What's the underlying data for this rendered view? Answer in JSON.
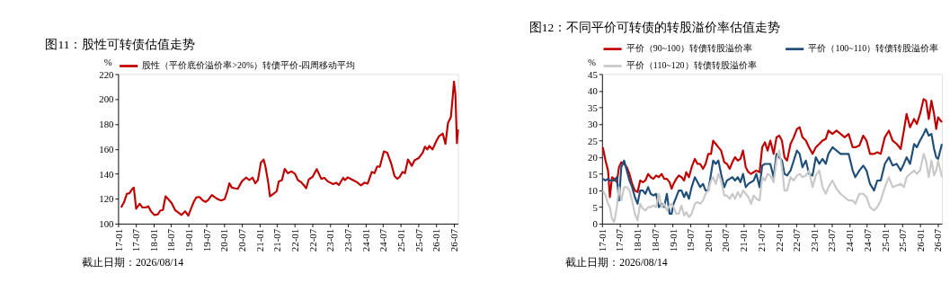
{
  "chart_data": [
    {
      "type": "line",
      "title": "图11：股性可转债估值走势",
      "ylabel": "%",
      "legend": "top",
      "xlim": [
        "2017-01-01",
        "2026-08-14"
      ],
      "ylim": [
        100,
        220
      ],
      "yticks": [
        100,
        120,
        140,
        160,
        180,
        200,
        220
      ],
      "xticks": [
        {
          "value": "2017-01",
          "label": "17-01"
        },
        {
          "value": "2017-07",
          "label": "17-07"
        },
        {
          "value": "2018-01",
          "label": "18-01"
        },
        {
          "value": "2018-07",
          "label": "18-07"
        },
        {
          "value": "2019-01",
          "label": "19-01"
        },
        {
          "value": "2019-07",
          "label": "19-07"
        },
        {
          "value": "2020-01",
          "label": "20-01"
        },
        {
          "value": "2020-07",
          "label": "20-07"
        },
        {
          "value": "2021-01",
          "label": "21-01"
        },
        {
          "value": "2021-07",
          "label": "21-07"
        },
        {
          "value": "2022-01",
          "label": "22-01"
        },
        {
          "value": "2022-07",
          "label": "22-07"
        },
        {
          "value": "2023-01",
          "label": "23-01"
        },
        {
          "value": "2023-07",
          "label": "23-07"
        },
        {
          "value": "2024-01",
          "label": "24-01"
        },
        {
          "value": "2024-07",
          "label": "24-07"
        },
        {
          "value": "2025-01",
          "label": "25-01"
        },
        {
          "value": "2025-07",
          "label": "25-07"
        },
        {
          "value": "2026-01",
          "label": "26-01"
        },
        {
          "value": "2026-07",
          "label": "26-07"
        }
      ],
      "x": [
        "2017-02-01",
        "2017-03-04",
        "2017-04-01",
        "2017-04-28",
        "2017-05-19",
        "2017-06-12",
        "2017-07-06",
        "2017-08-12",
        "2017-09-09",
        "2017-10-12",
        "2017-11-09",
        "2017-12-06",
        "2018-01-09",
        "2018-02-15",
        "2018-03-12",
        "2018-04-09",
        "2018-05-06",
        "2018-06-03",
        "2018-07-09",
        "2018-08-12",
        "2018-09-15",
        "2018-10-18",
        "2018-11-24",
        "2018-12-27",
        "2019-01-24",
        "2019-02-21",
        "2019-03-18",
        "2019-04-21",
        "2019-05-27",
        "2019-06-24",
        "2019-07-21",
        "2019-08-27",
        "2019-10-01",
        "2019-10-28",
        "2019-12-01",
        "2020-01-06",
        "2020-02-03",
        "2020-02-24",
        "2020-03-21",
        "2020-04-15",
        "2020-05-21",
        "2020-07-03",
        "2020-08-15",
        "2020-09-18",
        "2020-10-21",
        "2020-11-18",
        "2020-12-15",
        "2021-01-15",
        "2021-02-12",
        "2021-03-03",
        "2021-04-01",
        "2021-04-19",
        "2021-05-24",
        "2021-06-27",
        "2021-07-19",
        "2021-08-21",
        "2021-09-18",
        "2021-10-21",
        "2021-11-27",
        "2022-01-03",
        "2022-02-01",
        "2022-03-04",
        "2022-04-06",
        "2022-04-28",
        "2022-05-25",
        "2022-07-04",
        "2022-08-15",
        "2022-10-01",
        "2022-11-03",
        "2022-12-06",
        "2023-02-01",
        "2023-03-04",
        "2023-04-01",
        "2023-05-15",
        "2023-06-03",
        "2023-07-01",
        "2023-08-25",
        "2023-10-06",
        "2023-11-15",
        "2023-12-21",
        "2024-01-24",
        "2024-03-06",
        "2024-04-03",
        "2024-05-01",
        "2024-05-28",
        "2024-07-09",
        "2024-08-12",
        "2024-09-24",
        "2024-10-27",
        "2024-11-24",
        "2024-12-21",
        "2025-01-18",
        "2025-02-12",
        "2025-03-15",
        "2025-04-24",
        "2025-05-21",
        "2025-07-03",
        "2025-08-15",
        "2025-09-06",
        "2025-10-01",
        "2025-10-21",
        "2025-11-24",
        "2026-01-01",
        "2026-01-28",
        "2026-03-09",
        "2026-04-06",
        "2026-05-03",
        "2026-06-01",
        "2026-06-22",
        "2026-07-03",
        "2026-07-18",
        "2026-08-03",
        "2026-08-14"
      ],
      "series": [
        {
          "name": "股性（平价底价溢价率>20%）转债平价-四周移动平均",
          "color": "#c00000",
          "values": [
            113,
            117.5,
            124,
            124.5,
            127,
            129,
            112,
            116,
            113,
            113,
            114,
            110,
            107,
            107.5,
            110.5,
            111,
            122,
            119.7,
            116.5,
            111,
            109,
            107,
            110,
            106.5,
            112,
            117.5,
            121,
            121.5,
            118.6,
            117.5,
            119,
            123,
            121,
            119.7,
            118.6,
            119.7,
            126,
            132.4,
            129,
            128.5,
            128,
            134,
            137,
            135,
            137,
            132.4,
            135,
            149,
            151.5,
            146,
            133,
            122,
            124,
            126,
            134,
            135,
            144,
            140.5,
            142,
            140,
            135,
            133.5,
            130.7,
            128.5,
            135.5,
            137.7,
            143.8,
            136,
            136.8,
            134,
            131.8,
            132.9,
            131,
            136.8,
            135,
            137.2,
            135,
            133.3,
            130.7,
            132.9,
            132.2,
            141.6,
            140.5,
            146,
            145.6,
            158,
            157,
            148,
            138.3,
            136,
            137.7,
            141.6,
            140.5,
            151.5,
            146.4,
            150.8,
            152.6,
            157,
            161.8,
            159.6,
            162.4,
            159.6,
            166.2,
            170,
            172.3,
            164,
            181,
            185.4,
            203,
            214,
            204,
            164.6,
            175.6
          ]
        }
      ],
      "annotations": [
        "截止日期：2026/08/14"
      ]
    },
    {
      "type": "line",
      "title": "图12：不同平价可转债的转股溢价率估值走势",
      "ylabel": "%",
      "legend": "top",
      "xlim": [
        "2017-01-01",
        "2026-08-14"
      ],
      "ylim": [
        0,
        45
      ],
      "yticks": [
        0,
        5,
        10,
        15,
        20,
        25,
        30,
        35,
        40,
        45
      ],
      "xticks": [
        {
          "value": "2017-01",
          "label": "17-01"
        },
        {
          "value": "2017-07",
          "label": "17-07"
        },
        {
          "value": "2018-01",
          "label": "18-01"
        },
        {
          "value": "2018-07",
          "label": "18-07"
        },
        {
          "value": "2019-01",
          "label": "19-01"
        },
        {
          "value": "2019-07",
          "label": "19-07"
        },
        {
          "value": "2020-01",
          "label": "20-01"
        },
        {
          "value": "2020-07",
          "label": "20-07"
        },
        {
          "value": "2021-01",
          "label": "21-01"
        },
        {
          "value": "2021-07",
          "label": "21-07"
        },
        {
          "value": "2022-01",
          "label": "22-01"
        },
        {
          "value": "2022-07",
          "label": "22-07"
        },
        {
          "value": "2023-01",
          "label": "23-01"
        },
        {
          "value": "2023-07",
          "label": "23-07"
        },
        {
          "value": "2024-01",
          "label": "24-01"
        },
        {
          "value": "2024-07",
          "label": "24-07"
        },
        {
          "value": "2025-01",
          "label": "25-01"
        },
        {
          "value": "2025-07",
          "label": "25-07"
        },
        {
          "value": "2026-01",
          "label": "26-01"
        },
        {
          "value": "2026-07",
          "label": "26-07"
        }
      ],
      "x": [
        "2017-01-09",
        "2017-02-06",
        "2017-03-04",
        "2017-03-23",
        "2017-04-14",
        "2017-05-06",
        "2017-06-03",
        "2017-06-25",
        "2017-07-19",
        "2017-08-17",
        "2017-09-14",
        "2017-10-11",
        "2017-11-08",
        "2017-12-06",
        "2018-01-03",
        "2018-01-30",
        "2018-02-27",
        "2018-03-25",
        "2018-04-22",
        "2018-05-19",
        "2018-06-16",
        "2018-07-14",
        "2018-08-11",
        "2018-09-08",
        "2018-10-05",
        "2018-11-02",
        "2018-11-30",
        "2018-12-21",
        "2019-01-10",
        "2019-02-07",
        "2019-03-05",
        "2019-04-02",
        "2019-04-29",
        "2019-05-21",
        "2019-06-18",
        "2019-07-16",
        "2019-08-18",
        "2019-09-15",
        "2019-10-12",
        "2019-11-10",
        "2019-12-07",
        "2020-01-04",
        "2020-02-01",
        "2020-02-23",
        "2020-03-21",
        "2020-04-17",
        "2020-05-15",
        "2020-06-17",
        "2020-07-15",
        "2020-08-12",
        "2020-09-09",
        "2020-10-06",
        "2020-11-04",
        "2020-12-01",
        "2020-12-28",
        "2021-01-25",
        "2021-02-22",
        "2021-03-20",
        "2021-04-17",
        "2021-05-14",
        "2021-06-17",
        "2021-07-14",
        "2021-08-11",
        "2021-09-08",
        "2021-10-06",
        "2021-11-09",
        "2021-12-09",
        "2022-01-06",
        "2022-02-03",
        "2022-03-01",
        "2022-03-28",
        "2022-05-03",
        "2022-06-05",
        "2022-07-08",
        "2022-08-05",
        "2022-09-03",
        "2022-10-08",
        "2022-11-10",
        "2022-12-16",
        "2023-01-19",
        "2023-02-24",
        "2023-03-29",
        "2023-05-02",
        "2023-05-29",
        "2023-07-10",
        "2023-08-21",
        "2023-10-02",
        "2023-11-13",
        "2023-12-24",
        "2024-02-04",
        "2024-03-02",
        "2024-04-13",
        "2024-05-23",
        "2024-06-26",
        "2024-08-01",
        "2024-09-12",
        "2024-10-15",
        "2024-11-20",
        "2025-01-01",
        "2025-02-12",
        "2025-03-23",
        "2025-05-04",
        "2025-06-14",
        "2025-07-17",
        "2025-08-14",
        "2025-09-19",
        "2025-10-31",
        "2025-11-28",
        "2025-12-31",
        "2026-02-06",
        "2026-03-03",
        "2026-03-31",
        "2026-04-28",
        "2026-05-25",
        "2026-06-16",
        "2026-07-06",
        "2026-08-14"
      ],
      "series": [
        {
          "name": "平价（90~100）转债转股溢价率",
          "color": "#c00000",
          "values": [
            23,
            19,
            16,
            8,
            14,
            13.5,
            12.5,
            17,
            18.5,
            18,
            17,
            15,
            12,
            10,
            9.5,
            13,
            12.5,
            13,
            15,
            14,
            13.5,
            14.5,
            14,
            15,
            13.5,
            13.5,
            12.5,
            10.5,
            12,
            13.5,
            14.5,
            14,
            13,
            15.5,
            14,
            17,
            19.5,
            18,
            18,
            16.5,
            18,
            21,
            21,
            25,
            24,
            23,
            22,
            18.5,
            18,
            16.5,
            18.5,
            20,
            19,
            19.5,
            22,
            17,
            15.5,
            15,
            15.5,
            16,
            15.5,
            23,
            24.5,
            22,
            25,
            21,
            26,
            26.5,
            25,
            20,
            19,
            24,
            26,
            28.5,
            29,
            26,
            25,
            23,
            21,
            23,
            24,
            25,
            25.5,
            28,
            27,
            28,
            27,
            26,
            27,
            23,
            23,
            23.5,
            26.5,
            25,
            21,
            21,
            21.5,
            21,
            26,
            28,
            25,
            24,
            22.5,
            28,
            33,
            29,
            31.5,
            30,
            33,
            37.5,
            37,
            31.5,
            37,
            33,
            28.5,
            32,
            30.5
          ]
        },
        {
          "name": "平价（100~110）转债转股溢价率",
          "color": "#1f4e79",
          "values": [
            13.5,
            13,
            13.5,
            13,
            13,
            13,
            14,
            7,
            17,
            19,
            16,
            13,
            11,
            8,
            6,
            10,
            10,
            9,
            11,
            9,
            8.5,
            9,
            5,
            6,
            5,
            9,
            3,
            3,
            6,
            8,
            10,
            10,
            8,
            9.5,
            7.5,
            11,
            14,
            12.5,
            11,
            12,
            10,
            10,
            15,
            19,
            18,
            19,
            15,
            11,
            13,
            13.5,
            14,
            13,
            14,
            12.5,
            15,
            11,
            12,
            12.5,
            13,
            15,
            11,
            17.5,
            18,
            18,
            18,
            14,
            21,
            20,
            19,
            15,
            14.5,
            16,
            19,
            22,
            21,
            17,
            19,
            15,
            14.5,
            20,
            18,
            19.5,
            18,
            21,
            23,
            22,
            21,
            21,
            21,
            16,
            14,
            16,
            17.5,
            16,
            12,
            10,
            13,
            13,
            18,
            20,
            17.5,
            18,
            16,
            18,
            20,
            18,
            24,
            23,
            25,
            27,
            28.5,
            26.5,
            27,
            22.5,
            20,
            19.5,
            24
          ]
        },
        {
          "name": "平价（110~120）转债转股溢价率",
          "color": "#c8c8c8",
          "values": [
            10,
            8.5,
            6,
            5,
            1.5,
            0.5,
            5,
            11,
            7,
            11,
            11,
            10,
            7,
            3,
            1,
            6,
            4.5,
            4,
            5,
            5,
            5.5,
            5,
            9,
            5,
            6,
            4,
            5.5,
            6,
            5,
            3,
            3,
            5.5,
            2.5,
            3.5,
            2,
            3,
            6,
            6.5,
            6,
            7,
            9,
            10,
            13,
            14,
            12,
            15,
            13,
            8.5,
            8.5,
            7.5,
            9,
            7.5,
            9.5,
            8,
            10,
            9,
            8,
            6,
            8.5,
            7.5,
            7,
            14,
            13,
            15,
            14.5,
            12.5,
            19,
            22,
            17,
            10,
            10,
            14,
            13,
            14.5,
            15,
            14,
            14.5,
            16,
            11,
            14.5,
            16,
            11,
            9,
            11,
            13,
            10.5,
            9,
            8,
            7,
            7,
            6,
            9,
            9,
            8,
            5,
            4,
            5,
            7,
            11,
            14,
            11,
            11.5,
            12,
            11,
            14,
            15,
            16,
            15,
            16,
            21,
            19,
            14,
            19,
            14.5,
            16,
            19,
            14
          ]
        }
      ],
      "annotations": [
        "截止日期：2026/08/14"
      ]
    }
  ]
}
